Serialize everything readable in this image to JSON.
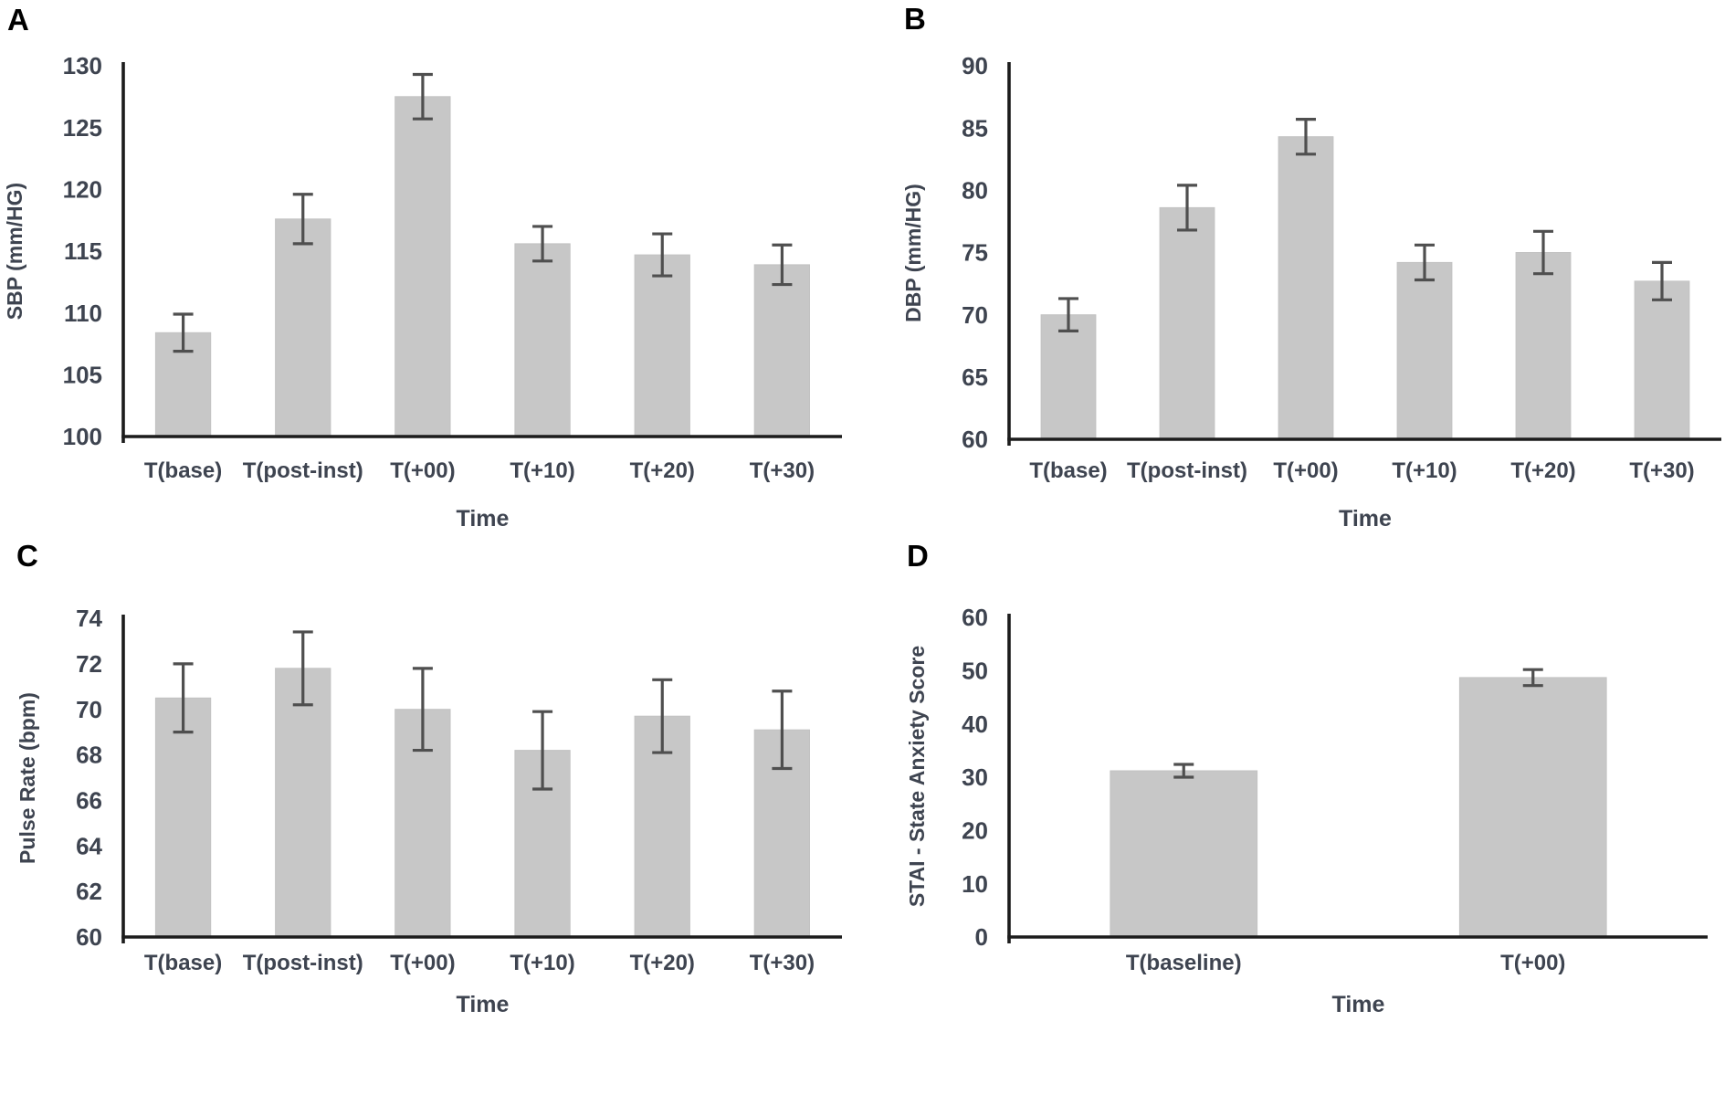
{
  "figure": {
    "background": "#ffffff",
    "description": "Four-panel bar chart figure with error bars"
  },
  "colors": {
    "bar_fill": "#c7c7c7",
    "bar_edge": "#c2c2c2",
    "error_bar": "#4f4f4f",
    "axis_line": "#1c1c1c",
    "tick_text": "#3e4450",
    "label_text": "#3e4450",
    "panel_letter": "#000000"
  },
  "chart_data": [
    {
      "panel_label": "A",
      "type": "bar",
      "title": "",
      "xlabel": "Time",
      "ylabel": "SBP (mm/HG)",
      "categories": [
        "T(base)",
        "T(post-inst)",
        "T(+00)",
        "T(+10)",
        "T(+20)",
        "T(+30)"
      ],
      "values": [
        108.4,
        117.6,
        127.5,
        115.6,
        114.7,
        113.9
      ],
      "errors": [
        1.5,
        2.0,
        1.8,
        1.4,
        1.7,
        1.6
      ],
      "ylim": [
        100,
        130
      ],
      "ytick_step": 5,
      "grid": false,
      "legend": false
    },
    {
      "panel_label": "B",
      "type": "bar",
      "title": "",
      "xlabel": "Time",
      "ylabel": "DBP (mm/HG)",
      "categories": [
        "T(base)",
        "T(post-inst)",
        "T(+00)",
        "T(+10)",
        "T(+20)",
        "T(+30)"
      ],
      "values": [
        70.0,
        78.6,
        84.3,
        74.2,
        75.0,
        72.7
      ],
      "errors": [
        1.3,
        1.8,
        1.4,
        1.4,
        1.7,
        1.5
      ],
      "ylim": [
        60,
        90
      ],
      "ytick_step": 5,
      "grid": false,
      "legend": false
    },
    {
      "panel_label": "C",
      "type": "bar",
      "title": "",
      "xlabel": "Time",
      "ylabel": "Pulse Rate (bpm)",
      "categories": [
        "T(base)",
        "T(post-inst)",
        "T(+00)",
        "T(+10)",
        "T(+20)",
        "T(+30)"
      ],
      "values": [
        70.5,
        71.8,
        70.0,
        68.2,
        69.7,
        69.1
      ],
      "errors": [
        1.5,
        1.6,
        1.8,
        1.7,
        1.6,
        1.7
      ],
      "ylim": [
        60,
        74
      ],
      "ytick_step": 2,
      "grid": false,
      "legend": false
    },
    {
      "panel_label": "D",
      "type": "bar",
      "title": "",
      "xlabel": "Time",
      "ylabel": "STAI - State Anxiety Score",
      "categories": [
        "T(baseline)",
        "T(+00)"
      ],
      "values": [
        31.2,
        48.7
      ],
      "errors": [
        1.2,
        1.5
      ],
      "ylim": [
        0,
        60
      ],
      "ytick_step": 10,
      "grid": false,
      "legend": false
    }
  ]
}
